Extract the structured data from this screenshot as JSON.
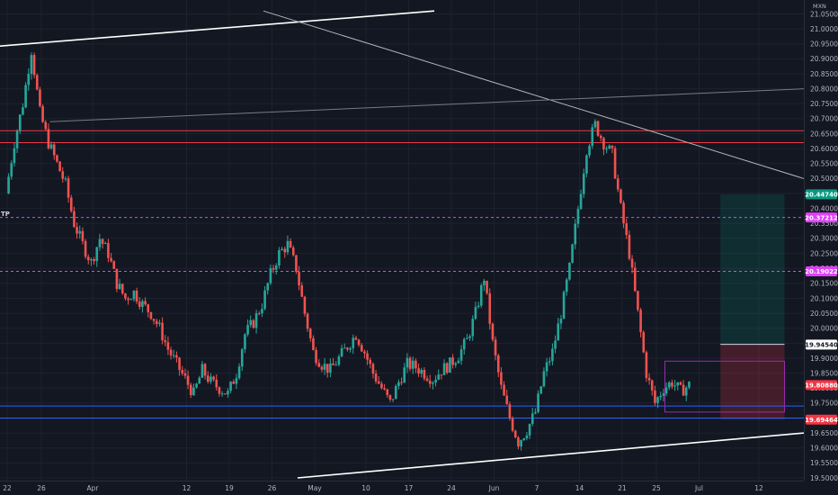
{
  "chart_data": {
    "type": "candlestick",
    "currency": "MXN",
    "ylim": [
      19.5,
      21.05
    ],
    "y_ticks": [
      "21.05000",
      "21.00000",
      "20.95000",
      "20.90000",
      "20.85000",
      "20.80000",
      "20.75000",
      "20.70000",
      "20.65000",
      "20.60000",
      "20.55000",
      "20.50000",
      "20.45000",
      "20.40000",
      "20.35000",
      "20.30000",
      "20.25000",
      "20.20000",
      "20.15000",
      "20.10000",
      "20.05000",
      "20.00000",
      "19.95000",
      "19.90000",
      "19.85000",
      "19.80000",
      "19.75000",
      "19.70000",
      "19.65000",
      "19.60000",
      "19.55000",
      "19.50000"
    ],
    "x_ticks": [
      {
        "label": "22",
        "x": 0
      },
      {
        "label": "26",
        "x": 4
      },
      {
        "label": "Apr",
        "x": 10
      },
      {
        "label": "12",
        "x": 21
      },
      {
        "label": "19",
        "x": 26
      },
      {
        "label": "26",
        "x": 31
      },
      {
        "label": "May",
        "x": 36
      },
      {
        "label": "10",
        "x": 42
      },
      {
        "label": "17",
        "x": 47
      },
      {
        "label": "24",
        "x": 52
      },
      {
        "label": "Jun",
        "x": 57
      },
      {
        "label": "7",
        "x": 62
      },
      {
        "label": "14",
        "x": 67
      },
      {
        "label": "21",
        "x": 72
      },
      {
        "label": "25",
        "x": 76
      },
      {
        "label": "Jul",
        "x": 81
      },
      {
        "label": "12",
        "x": 88
      }
    ],
    "price_path": [
      [
        0,
        20.45
      ],
      [
        1,
        20.62
      ],
      [
        2,
        20.75
      ],
      [
        3,
        20.93
      ],
      [
        4,
        20.72
      ],
      [
        5,
        20.62
      ],
      [
        6,
        20.55
      ],
      [
        7,
        20.48
      ],
      [
        8,
        20.35
      ],
      [
        9,
        20.28
      ],
      [
        10,
        20.22
      ],
      [
        11,
        20.3
      ],
      [
        12,
        20.25
      ],
      [
        13,
        20.15
      ],
      [
        14,
        20.1
      ],
      [
        15,
        20.12
      ],
      [
        16,
        20.08
      ],
      [
        17,
        20.05
      ],
      [
        18,
        20.0
      ],
      [
        19,
        19.93
      ],
      [
        20,
        19.88
      ],
      [
        21,
        19.83
      ],
      [
        22,
        19.78
      ],
      [
        23,
        19.86
      ],
      [
        24,
        19.82
      ],
      [
        25,
        19.8
      ],
      [
        26,
        19.78
      ],
      [
        27,
        19.85
      ],
      [
        28,
        19.98
      ],
      [
        29,
        20.02
      ],
      [
        30,
        20.08
      ],
      [
        31,
        20.18
      ],
      [
        32,
        20.25
      ],
      [
        33,
        20.28
      ],
      [
        34,
        20.2
      ],
      [
        35,
        20.05
      ],
      [
        36,
        19.92
      ],
      [
        37,
        19.88
      ],
      [
        38,
        19.86
      ],
      [
        39,
        19.9
      ],
      [
        40,
        19.94
      ],
      [
        41,
        19.98
      ],
      [
        42,
        19.92
      ],
      [
        43,
        19.85
      ],
      [
        44,
        19.8
      ],
      [
        45,
        19.75
      ],
      [
        46,
        19.82
      ],
      [
        47,
        19.88
      ],
      [
        48,
        19.87
      ],
      [
        49,
        19.85
      ],
      [
        50,
        19.83
      ],
      [
        51,
        19.86
      ],
      [
        52,
        19.88
      ],
      [
        53,
        19.91
      ],
      [
        54,
        19.96
      ],
      [
        55,
        20.05
      ],
      [
        56,
        20.17
      ],
      [
        57,
        19.95
      ],
      [
        58,
        19.8
      ],
      [
        59,
        19.7
      ],
      [
        60,
        19.62
      ],
      [
        61,
        19.66
      ],
      [
        62,
        19.72
      ],
      [
        63,
        19.85
      ],
      [
        64,
        19.92
      ],
      [
        65,
        20.05
      ],
      [
        66,
        20.2
      ],
      [
        67,
        20.4
      ],
      [
        68,
        20.6
      ],
      [
        69,
        20.68
      ],
      [
        70,
        20.62
      ],
      [
        71,
        20.58
      ],
      [
        72,
        20.4
      ],
      [
        73,
        20.25
      ],
      [
        74,
        20.05
      ],
      [
        75,
        19.85
      ],
      [
        76,
        19.75
      ],
      [
        77,
        19.8
      ],
      [
        78,
        19.82
      ],
      [
        79,
        19.79
      ],
      [
        80,
        19.81
      ]
    ],
    "horizontal_levels": [
      {
        "price": 20.66,
        "color": "#f23645",
        "style": "solid"
      },
      {
        "price": 20.62,
        "color": "#f23645",
        "style": "solid"
      },
      {
        "price": 20.37,
        "color": "#e040fb",
        "style": "dashed"
      },
      {
        "price": 20.19,
        "color": "#e040fb",
        "style": "dashed"
      },
      {
        "price": 19.74,
        "color": "#2962ff",
        "style": "solid"
      },
      {
        "price": 19.7,
        "color": "#2962ff",
        "style": "solid"
      }
    ],
    "trendlines": [
      {
        "from": [
          -2,
          20.94
        ],
        "to": [
          50,
          21.06
        ],
        "color": "#ffffff",
        "width": 1.6
      },
      {
        "from": [
          34,
          19.5
        ],
        "to": [
          101,
          19.65
        ],
        "color": "#ffffff",
        "width": 1.6
      },
      {
        "from": [
          30,
          21.06
        ],
        "to": [
          101,
          20.5
        ],
        "color": "#b2b5be",
        "width": 1
      },
      {
        "from": [
          5,
          20.69
        ],
        "to": [
          101,
          20.8
        ],
        "color": "#787b86",
        "width": 1
      }
    ],
    "position": {
      "start_x": 83.5,
      "end_x": 91,
      "entry": 19.946,
      "target": 20.447,
      "stop": 19.695
    },
    "rectangles": [
      {
        "x1": 77,
        "x2": 91,
        "y1": 19.89,
        "y2": 19.72,
        "color": "#9c27b0"
      }
    ],
    "price_labels": [
      {
        "price": 20.4474,
        "text": "20.44740",
        "bg": "#089981",
        "fg": "#ffffff"
      },
      {
        "price": 20.37,
        "text": "20.37212",
        "bg": "#e040fb",
        "fg": "#ffffff"
      },
      {
        "price": 20.19,
        "text": "20.19022",
        "bg": "#e040fb",
        "fg": "#ffffff"
      },
      {
        "price": 19.9454,
        "text": "19.94540",
        "bg": "#ffffff",
        "fg": "#131722"
      },
      {
        "price": 19.81,
        "text": "19.80880",
        "bg": "#f23645",
        "fg": "#ffffff"
      },
      {
        "price": 19.6946,
        "text": "19.69464",
        "bg": "#f23645",
        "fg": "#ffffff"
      }
    ],
    "side_label": "TP"
  }
}
